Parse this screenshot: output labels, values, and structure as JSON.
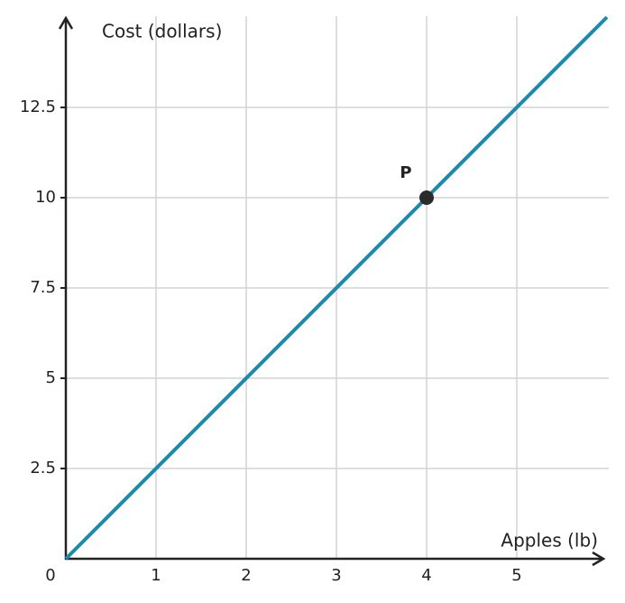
{
  "chart_data": {
    "type": "line",
    "x_label": "Apples (lb)",
    "y_label": "Cost (dollars)",
    "xlim": [
      0,
      6
    ],
    "ylim": [
      0,
      15
    ],
    "xticks": [
      0,
      1,
      2,
      3,
      4,
      5
    ],
    "yticks": [
      2.5,
      5,
      7.5,
      10,
      12.5
    ],
    "grid": true,
    "series": [
      {
        "color": "#1a8aad",
        "x": [
          0,
          6
        ],
        "values": [
          0,
          15
        ]
      }
    ],
    "points": [
      {
        "label": "P",
        "x": 4,
        "y": 10,
        "color": "#2b2b2b"
      }
    ]
  }
}
